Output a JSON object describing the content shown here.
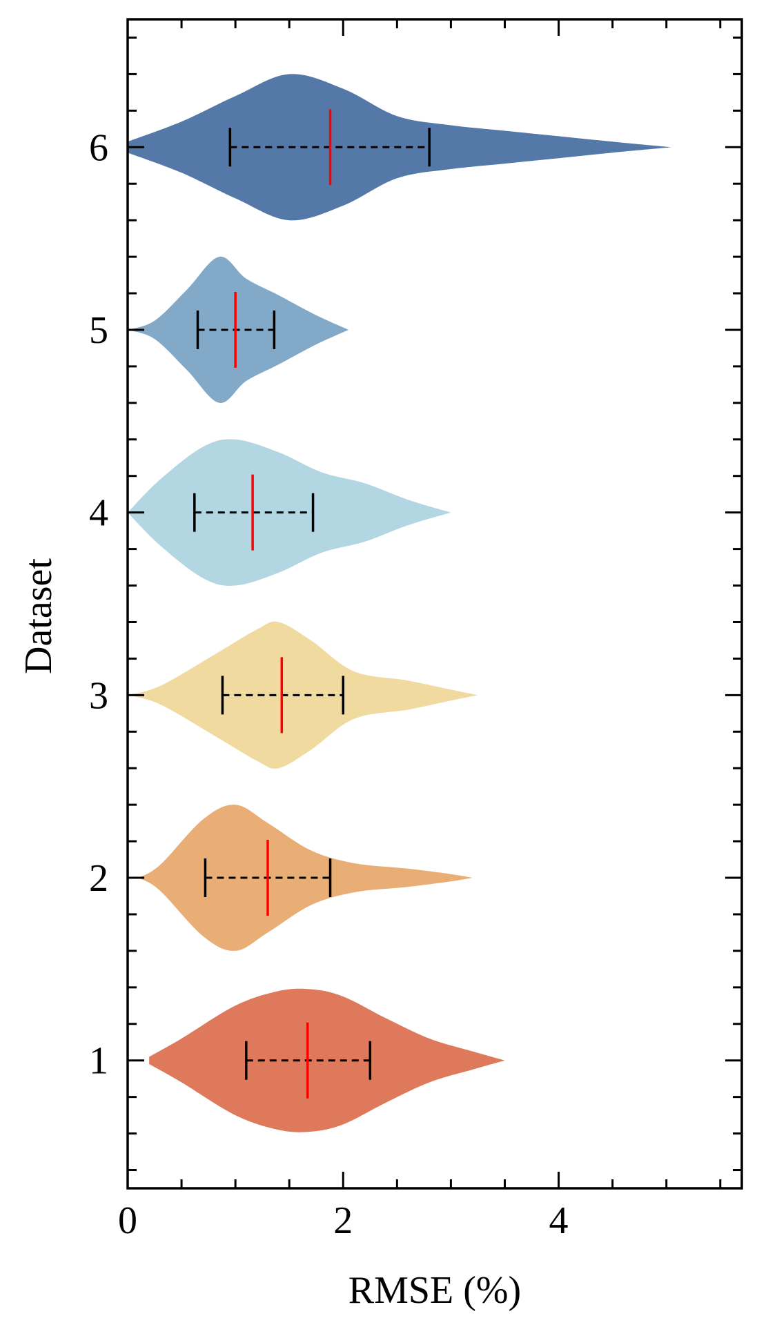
{
  "chart_data": {
    "type": "violin",
    "title": "",
    "xlabel": "RMSE (%)",
    "ylabel": "Dataset",
    "xlim": [
      0,
      5.7
    ],
    "ylim": [
      0.3,
      6.7
    ],
    "xticks": [
      0,
      2,
      4
    ],
    "xtick_labels": [
      "0",
      "2",
      "4"
    ],
    "yticks": [
      1,
      2,
      3,
      4,
      5,
      6
    ],
    "ytick_labels": [
      "1",
      "2",
      "3",
      "4",
      "5",
      "6"
    ],
    "series": [
      {
        "name": "1",
        "position": 1,
        "color": "#DE7A5B",
        "min": 0.2,
        "max": 3.5,
        "q1": 1.1,
        "q3": 2.25,
        "median": 1.67,
        "profile": [
          [
            0.2,
            0.02
          ],
          [
            0.5,
            0.12
          ],
          [
            1.0,
            0.3
          ],
          [
            1.4,
            0.38
          ],
          [
            1.7,
            0.39
          ],
          [
            2.0,
            0.35
          ],
          [
            2.4,
            0.23
          ],
          [
            2.8,
            0.12
          ],
          [
            3.2,
            0.05
          ],
          [
            3.5,
            0.0
          ]
        ]
      },
      {
        "name": "2",
        "position": 2,
        "color": "#E9AE76",
        "min": 0.1,
        "max": 3.2,
        "q1": 0.72,
        "q3": 1.88,
        "median": 1.3,
        "profile": [
          [
            0.1,
            0.0
          ],
          [
            0.3,
            0.07
          ],
          [
            0.7,
            0.32
          ],
          [
            1.0,
            0.4
          ],
          [
            1.3,
            0.3
          ],
          [
            1.7,
            0.15
          ],
          [
            2.1,
            0.08
          ],
          [
            2.6,
            0.05
          ],
          [
            3.0,
            0.02
          ],
          [
            3.2,
            0.0
          ]
        ]
      },
      {
        "name": "3",
        "position": 3,
        "color": "#F0DAA0",
        "min": 0.0,
        "max": 3.25,
        "q1": 0.88,
        "q3": 2.0,
        "median": 1.43,
        "profile": [
          [
            0.0,
            0.0
          ],
          [
            0.3,
            0.05
          ],
          [
            0.8,
            0.22
          ],
          [
            1.2,
            0.36
          ],
          [
            1.4,
            0.4
          ],
          [
            1.7,
            0.3
          ],
          [
            2.1,
            0.13
          ],
          [
            2.6,
            0.08
          ],
          [
            3.0,
            0.03
          ],
          [
            3.25,
            0.0
          ]
        ]
      },
      {
        "name": "4",
        "position": 4,
        "color": "#B3D6E3",
        "min": 0.0,
        "max": 3.0,
        "q1": 0.62,
        "q3": 1.72,
        "median": 1.16,
        "profile": [
          [
            0.0,
            0.0
          ],
          [
            0.3,
            0.18
          ],
          [
            0.7,
            0.36
          ],
          [
            1.0,
            0.4
          ],
          [
            1.4,
            0.33
          ],
          [
            1.8,
            0.22
          ],
          [
            2.2,
            0.16
          ],
          [
            2.6,
            0.07
          ],
          [
            3.0,
            0.0
          ]
        ]
      },
      {
        "name": "5",
        "position": 5,
        "color": "#82AAC8",
        "min": 0.0,
        "max": 2.05,
        "q1": 0.65,
        "q3": 1.36,
        "median": 1.0,
        "profile": [
          [
            0.0,
            0.0
          ],
          [
            0.25,
            0.05
          ],
          [
            0.55,
            0.22
          ],
          [
            0.85,
            0.4
          ],
          [
            1.1,
            0.28
          ],
          [
            1.4,
            0.19
          ],
          [
            1.75,
            0.08
          ],
          [
            2.05,
            0.0
          ]
        ]
      },
      {
        "name": "6",
        "position": 6,
        "color": "#5478A8",
        "min": 0.0,
        "max": 5.05,
        "q1": 0.95,
        "q3": 2.8,
        "median": 1.88,
        "profile": [
          [
            0.0,
            0.03
          ],
          [
            0.5,
            0.14
          ],
          [
            1.0,
            0.28
          ],
          [
            1.5,
            0.4
          ],
          [
            2.0,
            0.32
          ],
          [
            2.5,
            0.17
          ],
          [
            3.0,
            0.12
          ],
          [
            3.5,
            0.09
          ],
          [
            4.0,
            0.06
          ],
          [
            4.5,
            0.03
          ],
          [
            5.05,
            0.0
          ]
        ]
      }
    ]
  }
}
